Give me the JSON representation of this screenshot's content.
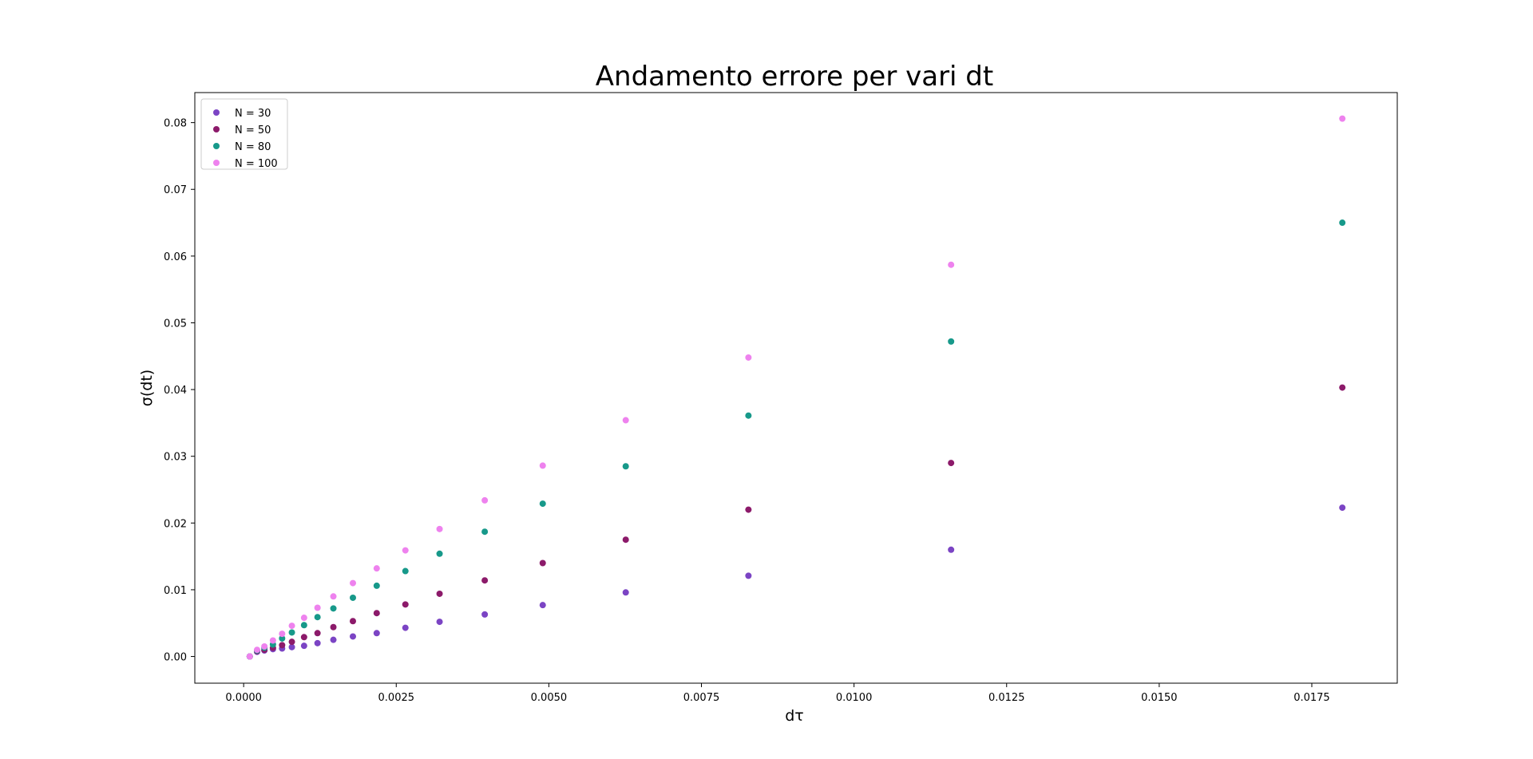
{
  "chart_data": {
    "type": "scatter",
    "title": "Andamento errore per vari dt",
    "xlabel": "dτ",
    "ylabel": "σ(dt)",
    "xlim": [
      -0.0008,
      0.0189
    ],
    "ylim": [
      -0.004,
      0.0845
    ],
    "xticks": [
      "0.0000",
      "0.0025",
      "0.0050",
      "0.0075",
      "0.0100",
      "0.0125",
      "0.0150",
      "0.0175"
    ],
    "xtick_values": [
      0,
      0.0025,
      0.005,
      0.0075,
      0.01,
      0.0125,
      0.015,
      0.0175
    ],
    "yticks": [
      "0.00",
      "0.01",
      "0.02",
      "0.03",
      "0.04",
      "0.05",
      "0.06",
      "0.07",
      "0.08"
    ],
    "ytick_values": [
      0,
      0.01,
      0.02,
      0.03,
      0.04,
      0.05,
      0.06,
      0.07,
      0.08
    ],
    "grid": false,
    "legend_position": "top-left",
    "x": [
      0.0001,
      0.00022,
      0.00034,
      0.00048,
      0.00063,
      0.00079,
      0.00099,
      0.00121,
      0.00147,
      0.00179,
      0.00218,
      0.00265,
      0.00321,
      0.00395,
      0.0049,
      0.00626,
      0.00827,
      0.01159,
      0.018
    ],
    "series": [
      {
        "name": "N = 30",
        "color": "#7b44c4",
        "values": [
          0.0,
          0.0007,
          0.0009,
          0.0011,
          0.0012,
          0.0014,
          0.0016,
          0.002,
          0.0025,
          0.003,
          0.0035,
          0.0043,
          0.0052,
          0.0063,
          0.0077,
          0.0096,
          0.0121,
          0.016,
          0.0223
        ]
      },
      {
        "name": "N = 50",
        "color": "#8c1a6a",
        "values": [
          0.0,
          0.0008,
          0.001,
          0.0013,
          0.0017,
          0.0022,
          0.0029,
          0.0035,
          0.0044,
          0.0053,
          0.0065,
          0.0078,
          0.0094,
          0.0114,
          0.014,
          0.0175,
          0.022,
          0.029,
          0.0403
        ]
      },
      {
        "name": "N = 80",
        "color": "#17998a",
        "values": [
          0.0,
          0.0009,
          0.0013,
          0.0018,
          0.0027,
          0.0036,
          0.0047,
          0.0059,
          0.0072,
          0.0088,
          0.0106,
          0.0128,
          0.0154,
          0.0187,
          0.0229,
          0.0285,
          0.0361,
          0.0472,
          0.065
        ]
      },
      {
        "name": "N = 100",
        "color": "#ee82ee",
        "values": [
          0.0,
          0.001,
          0.0015,
          0.0024,
          0.0034,
          0.0046,
          0.0058,
          0.0073,
          0.009,
          0.011,
          0.0132,
          0.0159,
          0.0191,
          0.0234,
          0.0286,
          0.0354,
          0.0448,
          0.0587,
          0.0806
        ]
      }
    ]
  }
}
